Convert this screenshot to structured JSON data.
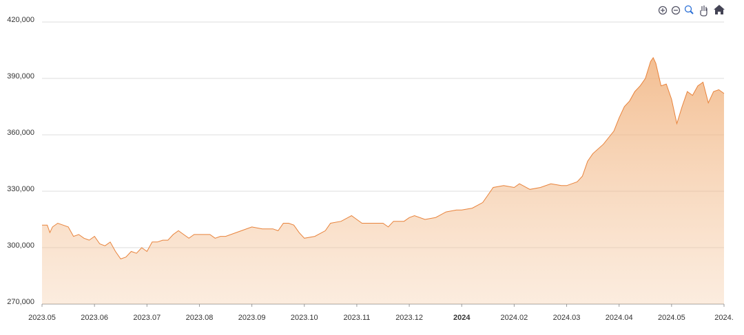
{
  "chart_data": {
    "type": "area",
    "x": [
      0,
      0.1,
      0.15,
      0.2,
      0.3,
      0.4,
      0.5,
      0.6,
      0.7,
      0.8,
      0.9,
      1.0,
      1.1,
      1.2,
      1.3,
      1.4,
      1.5,
      1.6,
      1.7,
      1.8,
      1.9,
      2.0,
      2.1,
      2.2,
      2.3,
      2.4,
      2.5,
      2.6,
      2.7,
      2.8,
      2.9,
      3.0,
      3.2,
      3.3,
      3.4,
      3.5,
      3.7,
      3.8,
      4.0,
      4.2,
      4.4,
      4.5,
      4.6,
      4.7,
      4.8,
      4.9,
      5.0,
      5.2,
      5.4,
      5.5,
      5.7,
      5.9,
      6.0,
      6.1,
      6.3,
      6.5,
      6.6,
      6.7,
      6.9,
      7.0,
      7.1,
      7.3,
      7.5,
      7.7,
      7.9,
      8.0,
      8.2,
      8.4,
      8.5,
      8.6,
      8.8,
      9.0,
      9.1,
      9.3,
      9.5,
      9.7,
      9.9,
      10.0,
      10.2,
      10.3,
      10.4,
      10.5,
      10.7,
      10.9,
      11.0,
      11.1,
      11.2,
      11.3,
      11.4,
      11.5,
      11.6,
      11.65,
      11.7,
      11.8,
      11.9,
      12.0,
      12.1,
      12.2,
      12.3,
      12.4,
      12.5,
      12.6,
      12.7,
      12.8,
      12.9,
      13.0
    ],
    "series": [
      {
        "color": "#e8823a",
        "values": [
          312000,
          312000,
          308000,
          311000,
          313000,
          312000,
          311000,
          306000,
          307000,
          305000,
          304000,
          306000,
          302000,
          301000,
          303000,
          298000,
          294000,
          295000,
          298000,
          297000,
          300000,
          298000,
          303000,
          303000,
          304000,
          304000,
          307000,
          309000,
          307000,
          305000,
          307000,
          307000,
          307000,
          305000,
          306000,
          306000,
          308000,
          309000,
          311000,
          310000,
          310000,
          309000,
          313000,
          313000,
          312000,
          308000,
          305000,
          306000,
          309000,
          313000,
          314000,
          317000,
          315000,
          313000,
          313000,
          313000,
          311000,
          314000,
          314000,
          316000,
          317000,
          315000,
          316000,
          319000,
          320000,
          320000,
          321000,
          324000,
          328000,
          332000,
          333000,
          332000,
          334000,
          331000,
          332000,
          334000,
          333000,
          333000,
          335000,
          338000,
          346000,
          350000,
          355000,
          362000,
          369000,
          375000,
          378000,
          383000,
          386000,
          390000,
          399000,
          401000,
          398000,
          386000,
          387000,
          379000,
          366000,
          375000,
          383000,
          381000,
          386000,
          388000,
          377000,
          383000,
          384000,
          382000
        ]
      }
    ],
    "xlim": [
      0,
      13
    ],
    "xticks": [
      {
        "value": 0,
        "label": "2023.05"
      },
      {
        "value": 1,
        "label": "2023.06"
      },
      {
        "value": 2,
        "label": "2023.07"
      },
      {
        "value": 3,
        "label": "2023.08"
      },
      {
        "value": 4,
        "label": "2023.09"
      },
      {
        "value": 5,
        "label": "2023.10"
      },
      {
        "value": 6,
        "label": "2023.11"
      },
      {
        "value": 7,
        "label": "2023.12"
      },
      {
        "value": 8,
        "label": "2024"
      },
      {
        "value": 9,
        "label": "2024.02"
      },
      {
        "value": 10,
        "label": "2024.03"
      },
      {
        "value": 11,
        "label": "2024.04"
      },
      {
        "value": 12,
        "label": "2024.05"
      },
      {
        "value": 13,
        "label": "2024."
      }
    ],
    "ylim": [
      270000,
      420000
    ],
    "yticks": [
      {
        "value": 270000,
        "label": "270,000"
      },
      {
        "value": 300000,
        "label": "300,000"
      },
      {
        "value": 330000,
        "label": "330,000"
      },
      {
        "value": 360000,
        "label": "360,000"
      },
      {
        "value": 390000,
        "label": "390,000"
      },
      {
        "value": 420000,
        "label": "420,000"
      }
    ],
    "grid": true
  }
}
